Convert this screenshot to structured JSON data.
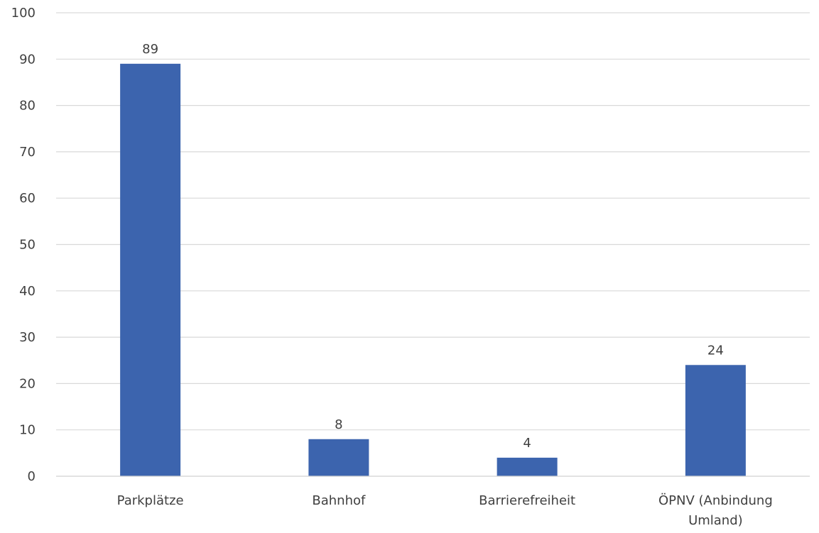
{
  "chart_data": {
    "type": "bar",
    "categories": [
      [
        "Parkplätze"
      ],
      [
        "Bahnhof"
      ],
      [
        "Barrierefreiheit"
      ],
      [
        "ÖPNV (Anbindung",
        "Umland)"
      ]
    ],
    "values": [
      89,
      8,
      4,
      24
    ],
    "data_labels": [
      "89",
      "8",
      "4",
      "24"
    ],
    "title": "",
    "xlabel": "",
    "ylabel": "",
    "ylim": [
      0,
      100
    ],
    "yticks": [
      0,
      10,
      20,
      30,
      40,
      50,
      60,
      70,
      80,
      90,
      100
    ],
    "grid": true,
    "legend": "none",
    "bar_color": "#3c64ae"
  }
}
